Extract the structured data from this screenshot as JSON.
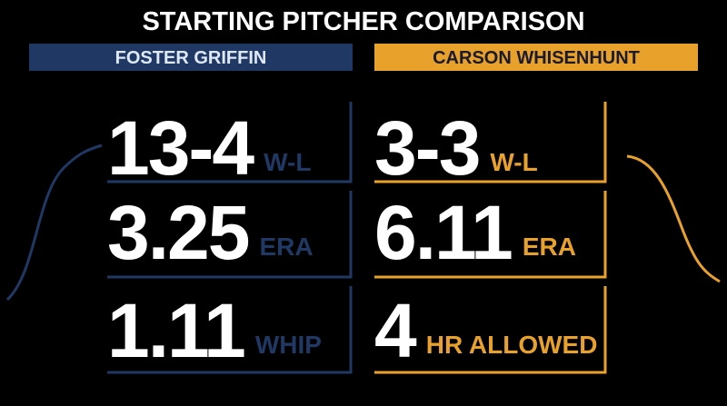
{
  "title": "STARTING PITCHER COMPARISON",
  "players": [
    {
      "name": "FOSTER GRIFFIN",
      "stats": [
        {
          "value": "13-4",
          "label": "W-L"
        },
        {
          "value": "3.25",
          "label": "ERA"
        },
        {
          "value": "1.11",
          "label": "WHIP"
        }
      ]
    },
    {
      "name": "CARSON WHISENHUNT",
      "stats": [
        {
          "value": "3-3",
          "label": "W-L"
        },
        {
          "value": "6.11",
          "label": "ERA"
        },
        {
          "value": "4",
          "label": "HR ALLOWED"
        }
      ]
    }
  ]
}
